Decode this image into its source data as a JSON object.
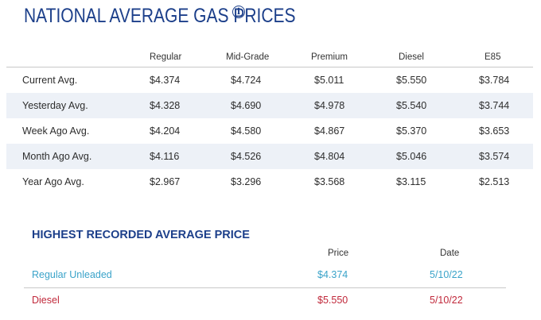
{
  "title": "NATIONAL AVERAGE GAS PRICES",
  "info_icon": "info-circle-icon",
  "table": {
    "columns": [
      "Regular",
      "Mid-Grade",
      "Premium",
      "Diesel",
      "E85"
    ],
    "rows": [
      {
        "label": "Current Avg.",
        "values": [
          "$4.374",
          "$4.724",
          "$5.011",
          "$5.550",
          "$3.784"
        ]
      },
      {
        "label": "Yesterday Avg.",
        "values": [
          "$4.328",
          "$4.690",
          "$4.978",
          "$5.540",
          "$3.744"
        ]
      },
      {
        "label": "Week Ago Avg.",
        "values": [
          "$4.204",
          "$4.580",
          "$4.867",
          "$5.370",
          "$3.653"
        ]
      },
      {
        "label": "Month Ago Avg.",
        "values": [
          "$4.116",
          "$4.526",
          "$4.804",
          "$5.046",
          "$3.574"
        ]
      },
      {
        "label": "Year Ago Avg.",
        "values": [
          "$2.967",
          "$3.296",
          "$3.568",
          "$3.115",
          "$2.513"
        ]
      }
    ]
  },
  "highest": {
    "title": "HIGHEST RECORDED AVERAGE PRICE",
    "columns": [
      "Price",
      "Date"
    ],
    "rows": [
      {
        "label": "Regular Unleaded",
        "price": "$4.374",
        "date": "5/10/22",
        "color": "#3aa3c9"
      },
      {
        "label": "Diesel",
        "price": "$5.550",
        "date": "5/10/22",
        "color": "#c0283a"
      }
    ]
  }
}
